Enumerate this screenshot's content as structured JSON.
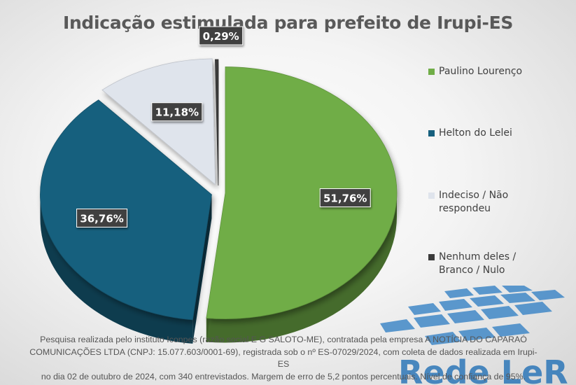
{
  "title": "Indicação estimulada para prefeito de Irupi-ES",
  "chart_data": {
    "type": "pie",
    "title": "Indicação estimulada para prefeito de Irupi-ES",
    "unit": "%",
    "legend_position": "right",
    "slices": [
      {
        "name": "Paulino Lourenço",
        "value": 51.76,
        "label": "51,76%",
        "color": "#70ad47"
      },
      {
        "name": "Helton do Lelei",
        "value": 36.76,
        "label": "36,76%",
        "color": "#17607e"
      },
      {
        "name": "Indeciso / Não respondeu",
        "value": 11.18,
        "label": "11,18%",
        "color": "#dfe4ec"
      },
      {
        "name": "Nenhum deles / Branco / Nulo",
        "value": 0.29,
        "label": "0,29%",
        "color": "#3a3a3a"
      }
    ]
  },
  "legend": [
    {
      "lines": [
        "Paulino Lourenço"
      ],
      "color": "#70ad47"
    },
    {
      "lines": [
        "Helton do Lelei"
      ],
      "color": "#17607e"
    },
    {
      "lines": [
        "Indeciso / Não",
        "respondeu"
      ],
      "color": "#dfe4ec"
    },
    {
      "lines": [
        "Nenhum deles /",
        "Branco / Nulo"
      ],
      "color": "#3a3a3a"
    }
  ],
  "footnote": {
    "line1": "Pesquisa realizada pelo instituto Iconpes (razão social E G SALOTO-ME), contratada pela empresa A NOTÍCIA DO CAPARAÓ",
    "line2": "COMUNICAÇÕES LTDA (CNPJ: 15.077.603/0001-69), registrada sob o nº ES-07029/2024, com coleta de dados realizada em Irupi-ES",
    "line3": "no dia 02 de outubro de 2024, com 340 entrevistados. Margem de erro de 5,2 pontos percentuais. Nível de confiança de 95%."
  },
  "watermark": {
    "text": "Rede LeR",
    "color": "#2d77b8"
  }
}
